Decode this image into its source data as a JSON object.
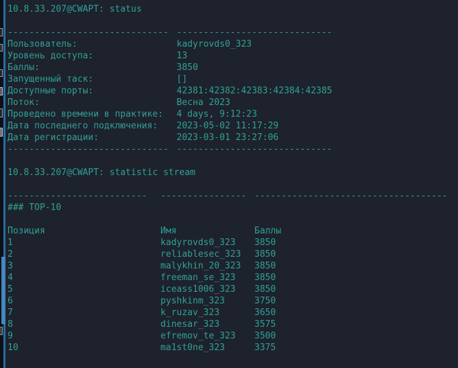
{
  "colors": {
    "background": "#1d222c",
    "foreground": "#31a096",
    "accent_bar": "#2c6ba4",
    "scroll_thumb": "#4587c0",
    "edge_strip": "#0d1218"
  },
  "status_session": {
    "prompt": "10.8.33.207@CWAPT: status",
    "separator": {
      "col1": "------------------------------",
      "col2": "-----------------------------"
    },
    "fields": [
      {
        "label": "Пользователь:",
        "value": "kadyrovds0_323"
      },
      {
        "label": "Уровень доступа:",
        "value": "13"
      },
      {
        "label": "Баллы:",
        "value": "3850"
      },
      {
        "label": "Запущенный таск:",
        "value": "[]"
      },
      {
        "label": "Доступные порты:",
        "value": "42381:42382:42383:42384:42385"
      },
      {
        "label": "Поток:",
        "value": "Весна 2023"
      },
      {
        "label": "Проведено времени в практике:",
        "value": "4 days, 9:12:23"
      },
      {
        "label": "Дата последнего подключения:",
        "value": "2023-05-02 11:17:29"
      },
      {
        "label": "Дата регистрации:",
        "value": "2023-03-01 23:27:06"
      }
    ]
  },
  "statistic_session": {
    "prompt": "10.8.33.207@CWAPT: statistic stream",
    "separator": {
      "col1": "--------------------------",
      "col2": "----------------",
      "col3": "------------------------------------"
    },
    "heading": "### TOP-10",
    "table": {
      "headers": {
        "position": "Позиция",
        "name": "Имя",
        "points": "Баллы"
      },
      "rows": [
        {
          "position": "1",
          "name": "kadyrovds0_323",
          "points": "3850"
        },
        {
          "position": "2",
          "name": "reliablesec_323",
          "points": "3850"
        },
        {
          "position": "3",
          "name": "malykhin_20_323",
          "points": "3850"
        },
        {
          "position": "4",
          "name": "freeman_se_323",
          "points": "3850"
        },
        {
          "position": "5",
          "name": "iceass1006_323",
          "points": "3850"
        },
        {
          "position": "6",
          "name": "pyshkinm_323",
          "points": "3750"
        },
        {
          "position": "7",
          "name": "k_ruzav_323",
          "points": "3650"
        },
        {
          "position": "8",
          "name": "dinesar_323",
          "points": "3575"
        },
        {
          "position": "9",
          "name": "efremov_te_323",
          "points": "3500"
        },
        {
          "position": "10",
          "name": "ma1st0ne_323",
          "points": "3375"
        }
      ]
    }
  }
}
